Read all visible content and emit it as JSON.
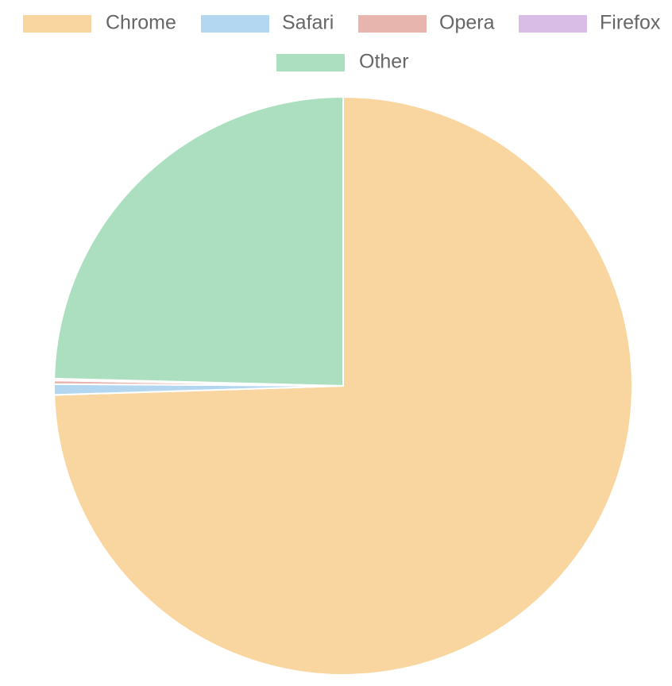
{
  "chart_data": {
    "type": "pie",
    "categories": [
      "Chrome",
      "Safari",
      "Opera",
      "Firefox",
      "Other"
    ],
    "values": [
      74.5,
      0.6,
      0.2,
      0.1,
      24.6
    ],
    "colors": [
      "#f9d6a0",
      "#b3d7f0",
      "#e8b4ae",
      "#d9bde6",
      "#abdfc0"
    ],
    "legend": "top"
  }
}
